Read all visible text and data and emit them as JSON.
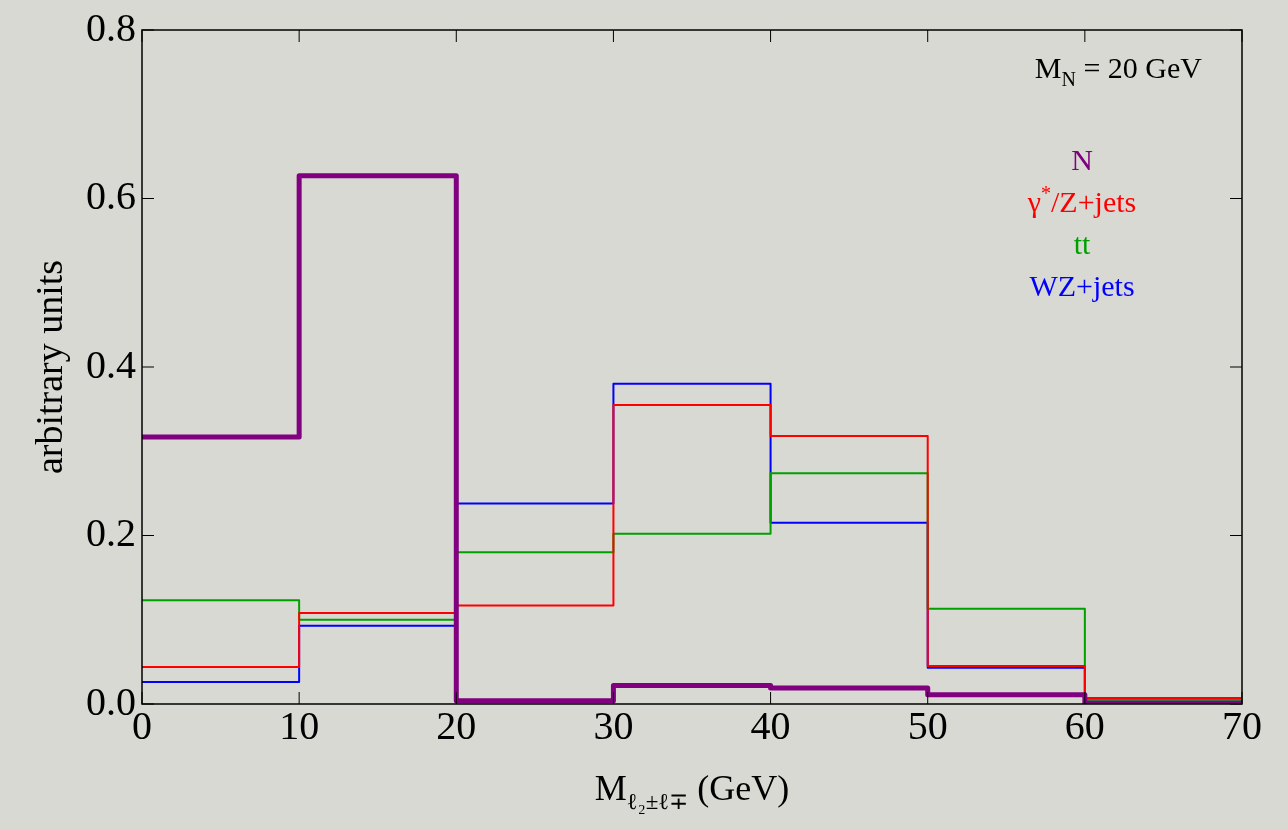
{
  "chart_data": {
    "type": "histogram",
    "xlabel": "M$_{ℓ₂±ℓ∓}$ (GeV)",
    "ylabel": "arbitrary units",
    "annotations": [
      "M$_{N}$ = 20 GeV"
    ],
    "bins": [
      0,
      10,
      20,
      30,
      40,
      50,
      60,
      70
    ],
    "series": [
      {
        "name": "N",
        "color": "#800080",
        "values": [
          0.317,
          0.627,
          0.004,
          0.022,
          0.019,
          0.011,
          0.001
        ]
      },
      {
        "name": "γ$^{*}$/Z+jets",
        "color": "#ff0000",
        "values": [
          0.044,
          0.108,
          0.117,
          0.355,
          0.318,
          0.045,
          0.007
        ]
      },
      {
        "name": "tt",
        "color": "#00a000",
        "values": [
          0.123,
          0.1,
          0.18,
          0.202,
          0.274,
          0.113,
          0.005
        ]
      },
      {
        "name": "WZ+jets",
        "color": "#0000ff",
        "values": [
          0.026,
          0.093,
          0.238,
          0.38,
          0.215,
          0.043,
          0.003
        ]
      }
    ],
    "xlim": [
      0,
      70
    ],
    "xticks": [
      0,
      10,
      20,
      30,
      40,
      50,
      60,
      70
    ],
    "ylim": [
      0,
      0.8
    ],
    "yticks": [
      {
        "value": 0,
        "label": "0.0"
      },
      {
        "value": 0.2,
        "label": "0.2"
      },
      {
        "value": 0.4,
        "label": "0.4"
      },
      {
        "value": 0.6,
        "label": "0.6"
      },
      {
        "value": 0.8,
        "label": "0.8"
      }
    ],
    "legend": "top right",
    "grid": false
  }
}
